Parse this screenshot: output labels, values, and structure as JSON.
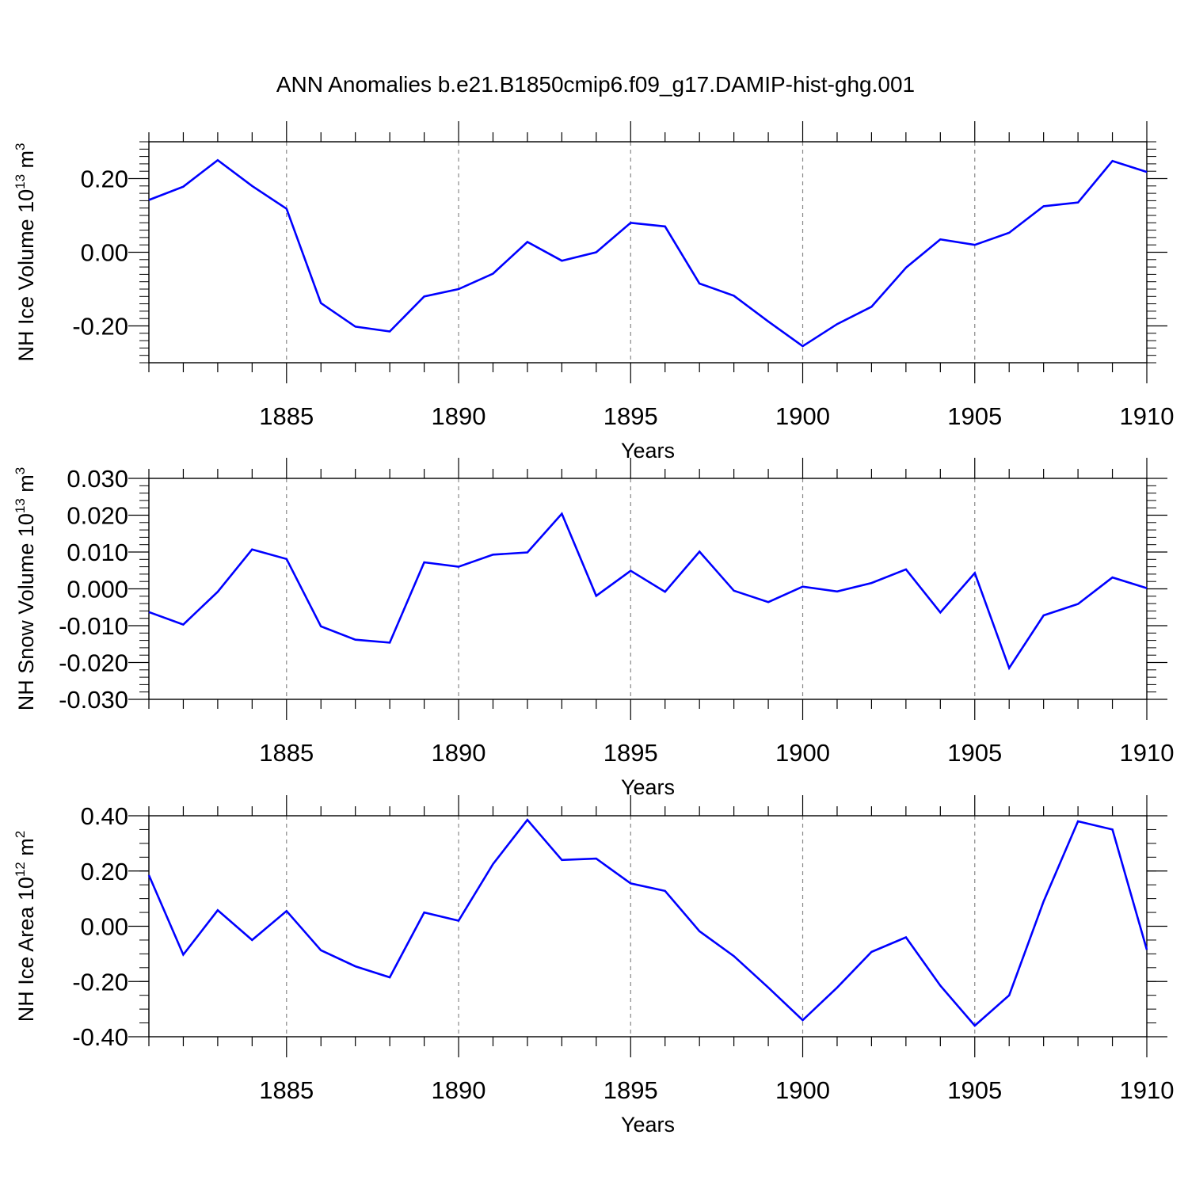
{
  "figure_title": "ANN Anomalies b.e21.B1850cmip6.f09_g17.DAMIP-hist-ghg.001",
  "line_color": "#0000ff",
  "chart_data": [
    {
      "type": "line",
      "ylabel_main": "NH Ice Volume 10",
      "ylabel_exp": "13",
      "ylabel_unit": " m",
      "ylabel_unit_exp": "3",
      "xlabel": "Years",
      "xlim": [
        1881,
        1910
      ],
      "ylim": [
        -0.3,
        0.3
      ],
      "x_ticks": [
        "1885",
        "1890",
        "1895",
        "1900",
        "1905",
        "1910"
      ],
      "y_ticks": [
        "0.20",
        "0.00",
        "-0.20"
      ],
      "y_tick_values": [
        0.2,
        0.0,
        -0.2
      ],
      "x": [
        1881,
        1882,
        1883,
        1884,
        1885,
        1886,
        1887,
        1888,
        1889,
        1890,
        1891,
        1892,
        1893,
        1894,
        1895,
        1896,
        1897,
        1898,
        1899,
        1900,
        1901,
        1902,
        1903,
        1904,
        1905,
        1906,
        1907,
        1908,
        1909,
        1910
      ],
      "series": [
        {
          "values": [
            0.142,
            0.178,
            0.25,
            0.18,
            0.118,
            -0.138,
            -0.202,
            -0.215,
            -0.12,
            -0.1,
            -0.058,
            0.028,
            -0.023,
            0.0,
            0.08,
            0.07,
            -0.085,
            -0.118,
            -0.188,
            -0.255,
            -0.195,
            -0.148,
            -0.042,
            0.035,
            0.02,
            0.053,
            0.125,
            0.135,
            0.248,
            0.218
          ]
        }
      ],
      "grid": "dashed vertical at major x ticks"
    },
    {
      "type": "line",
      "ylabel_main": "NH Snow Volume 10",
      "ylabel_exp": "13",
      "ylabel_unit": " m",
      "ylabel_unit_exp": "3",
      "xlabel": "Years",
      "xlim": [
        1881,
        1910
      ],
      "ylim": [
        -0.03,
        0.03
      ],
      "x_ticks": [
        "1885",
        "1890",
        "1895",
        "1900",
        "1905",
        "1910"
      ],
      "y_ticks": [
        "0.030",
        "0.020",
        "0.010",
        "0.000",
        "-0.010",
        "-0.020",
        "-0.030"
      ],
      "y_tick_values": [
        0.03,
        0.02,
        0.01,
        0.0,
        -0.01,
        -0.02,
        -0.03
      ],
      "x": [
        1881,
        1882,
        1883,
        1884,
        1885,
        1886,
        1887,
        1888,
        1889,
        1890,
        1891,
        1892,
        1893,
        1894,
        1895,
        1896,
        1897,
        1898,
        1899,
        1900,
        1901,
        1902,
        1903,
        1904,
        1905,
        1906,
        1907,
        1908,
        1909,
        1910
      ],
      "series": [
        {
          "values": [
            -0.0063,
            -0.0097,
            -0.0008,
            0.0107,
            0.0081,
            -0.0102,
            -0.0138,
            -0.0146,
            0.0072,
            0.006,
            0.0093,
            0.0099,
            0.0204,
            -0.0019,
            0.0049,
            -0.0008,
            0.0101,
            -0.0005,
            -0.0036,
            0.0006,
            -0.0007,
            0.0016,
            0.0053,
            -0.0064,
            0.0043,
            -0.0215,
            -0.0072,
            -0.0041,
            0.0031,
            0.0002
          ]
        }
      ],
      "grid": "dashed vertical at major x ticks"
    },
    {
      "type": "line",
      "ylabel_main": "NH Ice Area 10",
      "ylabel_exp": "12",
      "ylabel_unit": " m",
      "ylabel_unit_exp": "2",
      "xlabel": "Years",
      "xlim": [
        1881,
        1910
      ],
      "ylim": [
        -0.4,
        0.4
      ],
      "x_ticks": [
        "1885",
        "1890",
        "1895",
        "1900",
        "1905",
        "1910"
      ],
      "y_ticks": [
        "0.40",
        "0.20",
        "0.00",
        "-0.20",
        "-0.40"
      ],
      "y_tick_values": [
        0.4,
        0.2,
        0.0,
        -0.2,
        -0.4
      ],
      "x": [
        1881,
        1882,
        1883,
        1884,
        1885,
        1886,
        1887,
        1888,
        1889,
        1890,
        1891,
        1892,
        1893,
        1894,
        1895,
        1896,
        1897,
        1898,
        1899,
        1900,
        1901,
        1902,
        1903,
        1904,
        1905,
        1906,
        1907,
        1908,
        1909,
        1910
      ],
      "series": [
        {
          "values": [
            0.185,
            -0.103,
            0.058,
            -0.05,
            0.055,
            -0.087,
            -0.145,
            -0.185,
            0.05,
            0.02,
            0.225,
            0.385,
            0.24,
            0.245,
            0.155,
            0.128,
            -0.018,
            -0.108,
            -0.222,
            -0.34,
            -0.222,
            -0.093,
            -0.04,
            -0.215,
            -0.36,
            -0.25,
            0.09,
            0.38,
            0.35,
            -0.085
          ]
        }
      ],
      "grid": "dashed vertical at major x ticks"
    }
  ]
}
